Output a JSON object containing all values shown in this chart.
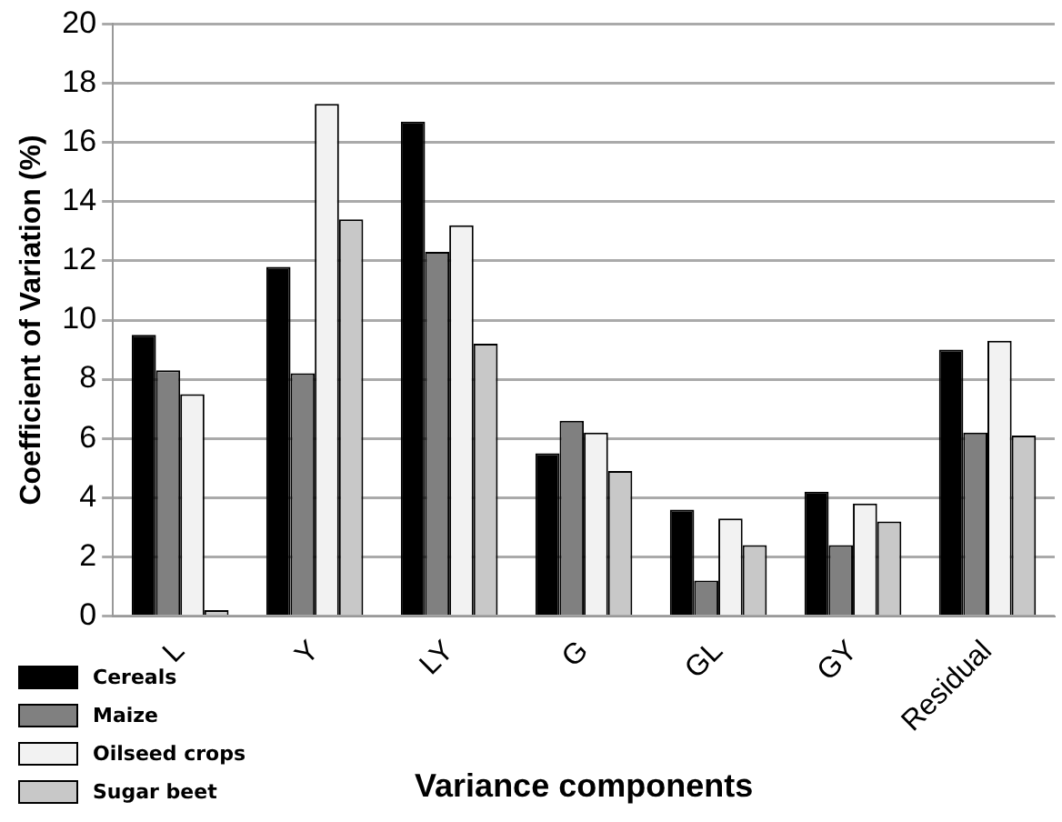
{
  "chart_data": {
    "type": "bar",
    "xlabel": "Variance components",
    "ylabel": "Coefficient of Variation (%)",
    "categories": [
      "L",
      "Y",
      "LY",
      "G",
      "GL",
      "GY",
      "Residual"
    ],
    "series": [
      {
        "name": "Cereals",
        "color": "#000000",
        "values": [
          9.5,
          11.8,
          16.7,
          5.5,
          3.6,
          4.2,
          9.0
        ]
      },
      {
        "name": "Maize",
        "color": "#808080",
        "values": [
          8.3,
          8.2,
          12.3,
          6.6,
          1.2,
          2.4,
          6.2
        ]
      },
      {
        "name": "Oilseed crops",
        "color": "#f2f2f2",
        "values": [
          7.5,
          17.3,
          13.2,
          6.2,
          3.3,
          3.8,
          9.3
        ]
      },
      {
        "name": "Sugar beet",
        "color": "#c8c8c8",
        "values": [
          0.2,
          13.4,
          9.2,
          4.9,
          2.4,
          3.2,
          6.1
        ]
      }
    ],
    "ylim": [
      0,
      20
    ],
    "yticks": [
      0,
      2,
      4,
      6,
      8,
      10,
      12,
      14,
      16,
      18,
      20
    ],
    "grid": "y",
    "legend": "bottom left"
  }
}
